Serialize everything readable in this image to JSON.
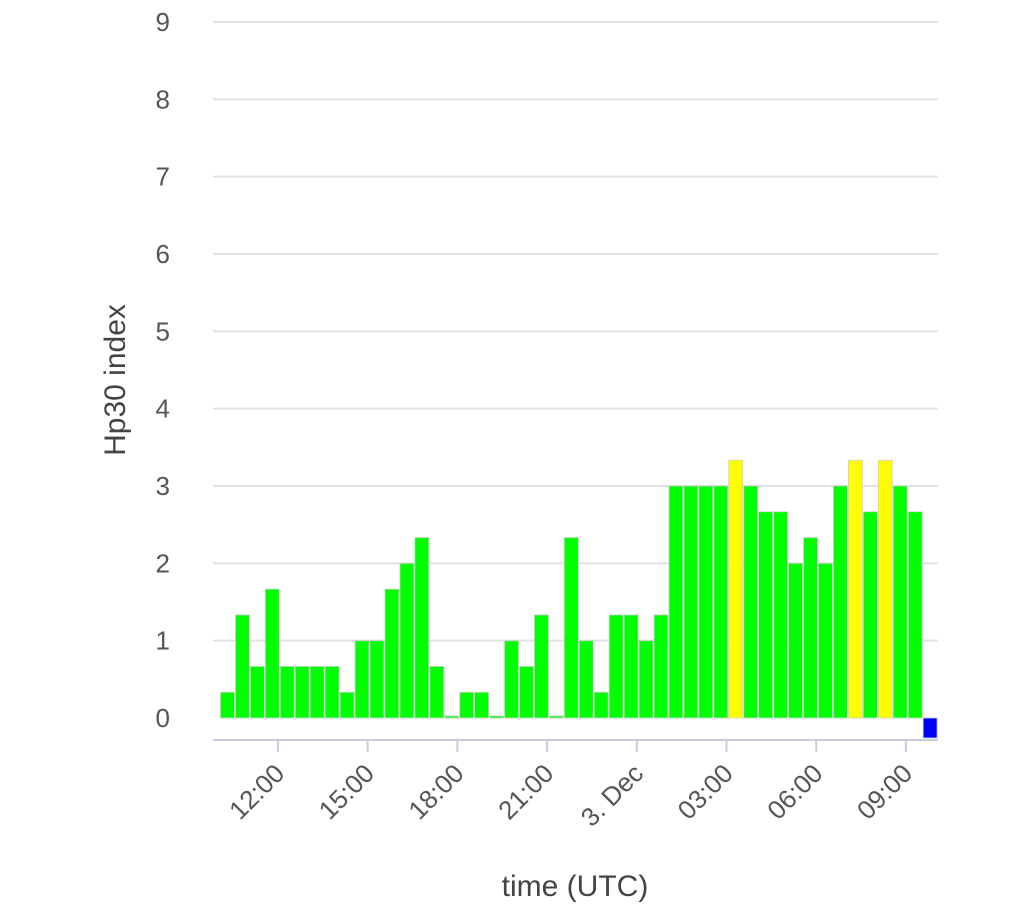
{
  "chart_data": {
    "type": "bar",
    "ylabel": "Hp30 index",
    "xlabel": "time (UTC)",
    "ylim": [
      0,
      9
    ],
    "yticks": [
      0,
      1,
      2,
      3,
      4,
      5,
      6,
      7,
      8,
      9
    ],
    "xticks": [
      "12:00",
      "15:00",
      "18:00",
      "21:00",
      "3. Dec",
      "03:00",
      "06:00",
      "09:00"
    ],
    "grid": true,
    "bar_interval_minutes": 30,
    "colors": {
      "quiet": "#00ff00",
      "active": "#ffff00",
      "latest": "#0000ff"
    },
    "values": [
      0.333,
      1.333,
      0.667,
      1.667,
      0.667,
      0.667,
      0.667,
      0.667,
      0.333,
      1.0,
      1.0,
      1.667,
      2.0,
      2.333,
      0.667,
      0.0,
      0.333,
      0.333,
      0.0,
      1.0,
      0.667,
      1.333,
      0.0,
      2.333,
      1.0,
      0.333,
      1.333,
      1.333,
      1.0,
      1.333,
      3.0,
      3.0,
      3.0,
      3.0,
      3.333,
      3.0,
      2.667,
      2.667,
      2.0,
      2.333,
      2.0,
      3.0,
      3.333,
      2.667,
      3.333,
      3.0,
      2.667,
      0.0
    ],
    "bar_colors": [
      "quiet",
      "quiet",
      "quiet",
      "quiet",
      "quiet",
      "quiet",
      "quiet",
      "quiet",
      "quiet",
      "quiet",
      "quiet",
      "quiet",
      "quiet",
      "quiet",
      "quiet",
      "quiet",
      "quiet",
      "quiet",
      "quiet",
      "quiet",
      "quiet",
      "quiet",
      "quiet",
      "quiet",
      "quiet",
      "quiet",
      "quiet",
      "quiet",
      "quiet",
      "quiet",
      "quiet",
      "quiet",
      "quiet",
      "quiet",
      "active",
      "quiet",
      "quiet",
      "quiet",
      "quiet",
      "quiet",
      "quiet",
      "quiet",
      "active",
      "quiet",
      "active",
      "quiet",
      "quiet",
      "latest"
    ]
  }
}
